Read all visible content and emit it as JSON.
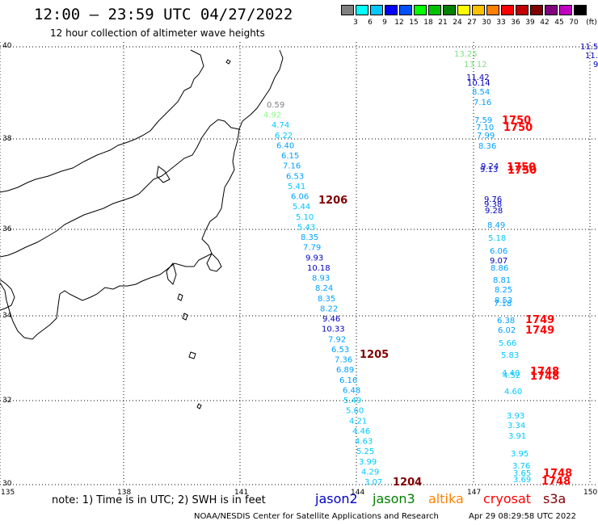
{
  "header": {
    "title": "12:00 – 23:59 UTC 04/27/2022",
    "subtitle": "12 hour collection of altimeter wave heights"
  },
  "colorbar": {
    "unit": "(ft)",
    "labels": [
      "3",
      "6",
      "9",
      "12",
      "15",
      "18",
      "21",
      "24",
      "27",
      "30",
      "33",
      "36",
      "39",
      "42",
      "45",
      "70"
    ],
    "colors": [
      "#808080",
      "#00ffff",
      "#00c8ff",
      "#0000ff",
      "#0050ff",
      "#00ff00",
      "#00c000",
      "#008000",
      "#ffff00",
      "#ffc000",
      "#ff8000",
      "#ff0000",
      "#c00000",
      "#800000",
      "#800080",
      "#c000c0",
      "#000000"
    ]
  },
  "axes": {
    "lat_labels": [
      "40",
      "38",
      "36",
      "34",
      "32",
      "30"
    ],
    "lon_labels": [
      "135",
      "138",
      "141",
      "144",
      "147",
      "150"
    ]
  },
  "tracks": [
    {
      "name": "track-central",
      "points": [
        {
          "v": "0.59",
          "c": "#808080"
        },
        {
          "v": "4.92",
          "c": "#80ff80"
        },
        {
          "v": "4.74",
          "c": "#00c8ff"
        },
        {
          "v": "6.22",
          "c": "#00c8ff"
        },
        {
          "v": "6.40",
          "c": "#00a0ff"
        },
        {
          "v": "6.15",
          "c": "#00a0ff"
        },
        {
          "v": "7.16",
          "c": "#00a0ff"
        },
        {
          "v": "6.53",
          "c": "#00a0ff"
        },
        {
          "v": "5.41",
          "c": "#00c8ff"
        },
        {
          "v": "6.06",
          "c": "#00a0ff"
        },
        {
          "v": "5.44",
          "c": "#00c8ff"
        },
        {
          "v": "5.10",
          "c": "#00c8ff"
        },
        {
          "v": "5.43",
          "c": "#00c8ff"
        },
        {
          "v": "8.35",
          "c": "#00a0ff"
        },
        {
          "v": "7.79",
          "c": "#00a0ff"
        },
        {
          "v": "9.93",
          "c": "#0000c0"
        },
        {
          "v": "10.18",
          "c": "#0000c0"
        },
        {
          "v": "8.93",
          "c": "#00a0ff"
        },
        {
          "v": "8.24",
          "c": "#00a0ff"
        },
        {
          "v": "8.35",
          "c": "#00a0ff"
        },
        {
          "v": "8.22",
          "c": "#00a0ff"
        },
        {
          "v": "9.46",
          "c": "#0000c0"
        },
        {
          "v": "10.33",
          "c": "#0000c0"
        },
        {
          "v": "7.92",
          "c": "#00a0ff"
        },
        {
          "v": "6.53",
          "c": "#00a0ff"
        },
        {
          "v": "7.36",
          "c": "#00a0ff"
        },
        {
          "v": "6.89",
          "c": "#00a0ff"
        },
        {
          "v": "6.16",
          "c": "#00a0ff"
        },
        {
          "v": "6.48",
          "c": "#00a0ff"
        },
        {
          "v": "5.49",
          "c": "#00c8ff"
        },
        {
          "v": "5.60",
          "c": "#00c8ff"
        },
        {
          "v": "4.21",
          "c": "#00c8ff"
        },
        {
          "v": "4.46",
          "c": "#00c8ff"
        },
        {
          "v": "4.63",
          "c": "#00c8ff"
        },
        {
          "v": "5.25",
          "c": "#00c8ff"
        },
        {
          "v": "3.99",
          "c": "#00c8ff"
        },
        {
          "v": "4.29",
          "c": "#00c8ff"
        },
        {
          "v": "3.07",
          "c": "#00c8ff"
        }
      ]
    },
    {
      "name": "track-east",
      "points": [
        {
          "v": "13.25",
          "c": "#80e080"
        },
        {
          "v": "13.12",
          "c": "#80e080"
        },
        {
          "v": "11.42",
          "c": "#0000c0"
        },
        {
          "v": "10.14",
          "c": "#0000c0"
        },
        {
          "v": "8.54",
          "c": "#00a0ff"
        },
        {
          "v": "7.16",
          "c": "#00a0ff"
        },
        {
          "v": "7.59",
          "c": "#00a0ff"
        },
        {
          "v": "7.10",
          "c": "#00a0ff"
        },
        {
          "v": "7.99",
          "c": "#00a0ff"
        },
        {
          "v": "8.36",
          "c": "#00a0ff"
        },
        {
          "v": "9.24",
          "c": "#0000c0"
        },
        {
          "v": "9.13",
          "c": "#0000c0"
        },
        {
          "v": "9.76",
          "c": "#0000c0"
        },
        {
          "v": "9.38",
          "c": "#0000c0"
        },
        {
          "v": "9.28",
          "c": "#0000c0"
        },
        {
          "v": "8.49",
          "c": "#00a0ff"
        },
        {
          "v": "5.18",
          "c": "#00c8ff"
        },
        {
          "v": "6.06",
          "c": "#00a0ff"
        },
        {
          "v": "9.07",
          "c": "#0000c0"
        },
        {
          "v": "8.86",
          "c": "#00a0ff"
        },
        {
          "v": "8.81",
          "c": "#00a0ff"
        },
        {
          "v": "8.25",
          "c": "#00a0ff"
        },
        {
          "v": "8.53",
          "c": "#00a0ff"
        },
        {
          "v": "7.18",
          "c": "#00a0ff"
        },
        {
          "v": "6.38",
          "c": "#00a0ff"
        },
        {
          "v": "6.02",
          "c": "#00a0ff"
        },
        {
          "v": "5.66",
          "c": "#00c8ff"
        },
        {
          "v": "5.83",
          "c": "#00c8ff"
        },
        {
          "v": "4.40",
          "c": "#00c8ff"
        },
        {
          "v": "4.52",
          "c": "#00c8ff"
        },
        {
          "v": "4.60",
          "c": "#00c8ff"
        },
        {
          "v": "3.93",
          "c": "#00c8ff"
        },
        {
          "v": "3.34",
          "c": "#00c8ff"
        },
        {
          "v": "3.91",
          "c": "#00c8ff"
        },
        {
          "v": "3.95",
          "c": "#00c8ff"
        },
        {
          "v": "3.76",
          "c": "#00c8ff"
        },
        {
          "v": "3.65",
          "c": "#00c8ff"
        },
        {
          "v": "3.69",
          "c": "#00c8ff"
        }
      ]
    }
  ],
  "corner_values": [
    {
      "v": "11.5",
      "c": "#0000c0"
    },
    {
      "v": "11.",
      "c": "#0000c0"
    },
    {
      "v": "9.",
      "c": "#0000c0"
    }
  ],
  "pass_times": [
    {
      "v": "1206",
      "c": "#800000"
    },
    {
      "v": "1205",
      "c": "#800000"
    },
    {
      "v": "1204",
      "c": "#800000"
    },
    {
      "v": "1750",
      "c": "#ff0000"
    },
    {
      "v": "1750",
      "c": "#ff0000"
    },
    {
      "v": "1750",
      "c": "#ff0000"
    },
    {
      "v": "1750",
      "c": "#ff0000"
    },
    {
      "v": "1749",
      "c": "#ff0000"
    },
    {
      "v": "1749",
      "c": "#ff0000"
    },
    {
      "v": "1748",
      "c": "#ff0000"
    },
    {
      "v": "1748",
      "c": "#ff0000"
    },
    {
      "v": "1748",
      "c": "#ff0000"
    },
    {
      "v": "1748",
      "c": "#ff0000"
    }
  ],
  "footer": {
    "note": "note:  1) Time is in UTC;  2) SWH is in feet",
    "satellites": [
      {
        "name": "jason2",
        "color": "#0000c0"
      },
      {
        "name": "jason3",
        "color": "#008000"
      },
      {
        "name": "altika",
        "color": "#ff8000"
      },
      {
        "name": "cryosat",
        "color": "#ff0000"
      },
      {
        "name": "s3a",
        "color": "#800000"
      }
    ],
    "credit": "NOAA/NESDIS Center for Satellite Applications and Research",
    "timestamp": "Apr 29 08:29:58 UTC 2022"
  }
}
